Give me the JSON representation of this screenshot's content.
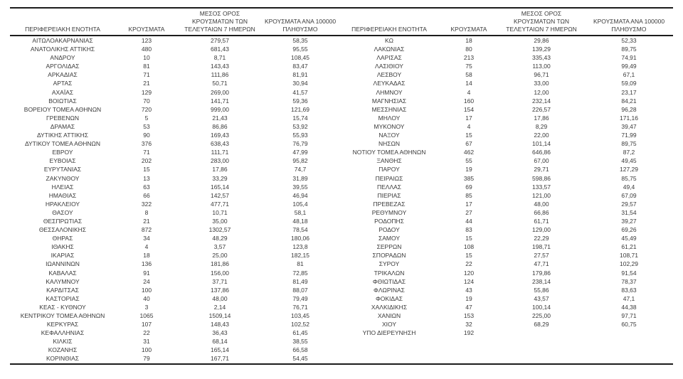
{
  "table": {
    "headers": {
      "regional_unit": "ΠΕΡΙΦΕΡΕΙΑΚΗ ΕΝΟΤΗΤΑ",
      "cases": "ΚΡΟΥΣΜΑΤΑ",
      "avg_7day": "ΜΕΣΟΣ ΟΡΟΣ\nΚΡΟΥΣΜΑΤΩΝ ΤΩΝ\nΤΕΛΕΥΤΑΙΩΝ 7 ΗΜΕΡΩΝ",
      "per_100k": "ΚΡΟΥΣΜΑΤΑ ΑΝΑ 100000\nΠΛΗΘΥΣΜΟ"
    },
    "left_rows": [
      [
        "ΑΙΤΩΛΟΑΚΑΡΝΑΝΙΑΣ",
        "123",
        "279,57",
        "58,35"
      ],
      [
        "ΑΝΑΤΟΛΙΚΗΣ ΑΤΤΙΚΗΣ",
        "480",
        "681,43",
        "95,55"
      ],
      [
        "ΑΝΔΡΟΥ",
        "10",
        "8,71",
        "108,45"
      ],
      [
        "ΑΡΓΟΛΙΔΑΣ",
        "81",
        "143,43",
        "83,47"
      ],
      [
        "ΑΡΚΑΔΙΑΣ",
        "71",
        "111,86",
        "81,91"
      ],
      [
        "ΑΡΤΑΣ",
        "21",
        "50,71",
        "30,94"
      ],
      [
        "ΑΧΑΪΑΣ",
        "129",
        "269,00",
        "41,57"
      ],
      [
        "ΒΟΙΩΤΙΑΣ",
        "70",
        "141,71",
        "59,36"
      ],
      [
        "ΒΟΡΕΙΟΥ ΤΟΜΕΑ ΑΘΗΝΩΝ",
        "720",
        "999,00",
        "121,69"
      ],
      [
        "ΓΡΕΒΕΝΩΝ",
        "5",
        "21,43",
        "15,74"
      ],
      [
        "ΔΡΑΜΑΣ",
        "53",
        "86,86",
        "53,92"
      ],
      [
        "ΔΥΤΙΚΗΣ ΑΤΤΙΚΗΣ",
        "90",
        "169,43",
        "55,93"
      ],
      [
        "ΔΥΤΙΚΟΥ ΤΟΜΕΑ ΑΘΗΝΩΝ",
        "376",
        "638,43",
        "76,79"
      ],
      [
        "ΕΒΡΟΥ",
        "71",
        "111,71",
        "47,99"
      ],
      [
        "ΕΥΒΟΙΑΣ",
        "202",
        "283,00",
        "95,82"
      ],
      [
        "ΕΥΡΥΤΑΝΙΑΣ",
        "15",
        "17,86",
        "74,7"
      ],
      [
        "ΖΑΚΥΝΘΟΥ",
        "13",
        "33,29",
        "31,89"
      ],
      [
        "ΗΛΕΙΑΣ",
        "63",
        "165,14",
        "39,55"
      ],
      [
        "ΗΜΑΘΙΑΣ",
        "66",
        "142,57",
        "46,94"
      ],
      [
        "ΗΡΑΚΛΕΙΟΥ",
        "322",
        "477,71",
        "105,4"
      ],
      [
        "ΘΑΣΟΥ",
        "8",
        "10,71",
        "58,1"
      ],
      [
        "ΘΕΣΠΡΩΤΙΑΣ",
        "21",
        "35,00",
        "48,18"
      ],
      [
        "ΘΕΣΣΑΛΟΝΙΚΗΣ",
        "872",
        "1302,57",
        "78,54"
      ],
      [
        "ΘΗΡΑΣ",
        "34",
        "48,29",
        "180,06"
      ],
      [
        "ΙΘΑΚΗΣ",
        "4",
        "3,57",
        "123,8"
      ],
      [
        "ΙΚΑΡΙΑΣ",
        "18",
        "25,00",
        "182,15"
      ],
      [
        "ΙΩΑΝΝΙΝΩΝ",
        "136",
        "181,86",
        "81"
      ],
      [
        "ΚΑΒΑΛΑΣ",
        "91",
        "156,00",
        "72,85"
      ],
      [
        "ΚΑΛΥΜΝΟΥ",
        "24",
        "37,71",
        "81,49"
      ],
      [
        "ΚΑΡΔΙΤΣΑΣ",
        "100",
        "137,86",
        "88,07"
      ],
      [
        "ΚΑΣΤΟΡΙΑΣ",
        "40",
        "48,00",
        "79,49"
      ],
      [
        "ΚΕΑΣ - ΚΥΘΝΟΥ",
        "3",
        "2,14",
        "76,71"
      ],
      [
        "ΚΕΝΤΡΙΚΟΥ ΤΟΜΕΑ ΑΘΗΝΩΝ",
        "1065",
        "1509,14",
        "103,45"
      ],
      [
        "ΚΕΡΚΥΡΑΣ",
        "107",
        "148,43",
        "102,52"
      ],
      [
        "ΚΕΦΑΛΛΗΝΙΑΣ",
        "22",
        "36,43",
        "61,45"
      ],
      [
        "ΚΙΛΚΙΣ",
        "31",
        "68,14",
        "38,55"
      ],
      [
        "ΚΟΖΑΝΗΣ",
        "100",
        "165,14",
        "66,58"
      ],
      [
        "ΚΟΡΙΝΘΙΑΣ",
        "79",
        "167,71",
        "54,45"
      ]
    ],
    "right_rows": [
      [
        "ΚΩ",
        "18",
        "29,86",
        "52,33"
      ],
      [
        "ΛΑΚΩΝΙΑΣ",
        "80",
        "139,29",
        "89,75"
      ],
      [
        "ΛΑΡΙΣΑΣ",
        "213",
        "335,43",
        "74,91"
      ],
      [
        "ΛΑΣΙΘΙΟΥ",
        "75",
        "113,00",
        "99,49"
      ],
      [
        "ΛΕΣΒΟΥ",
        "58",
        "96,71",
        "67,1"
      ],
      [
        "ΛΕΥΚΑΔΑΣ",
        "14",
        "33,00",
        "59,09"
      ],
      [
        "ΛΗΜΝΟΥ",
        "4",
        "12,00",
        "23,17"
      ],
      [
        "ΜΑΓΝΗΣΙΑΣ",
        "160",
        "232,14",
        "84,21"
      ],
      [
        "ΜΕΣΣΗΝΙΑΣ",
        "154",
        "226,57",
        "96,28"
      ],
      [
        "ΜΗΛΟΥ",
        "17",
        "17,86",
        "171,16"
      ],
      [
        "ΜΥΚΟΝΟΥ",
        "4",
        "8,29",
        "39,47"
      ],
      [
        "ΝΑΞΟΥ",
        "15",
        "22,00",
        "71,99"
      ],
      [
        "ΝΗΣΩΝ",
        "67",
        "101,14",
        "89,75"
      ],
      [
        "ΝΟΤΙΟΥ ΤΟΜΕΑ ΑΘΗΝΩΝ",
        "462",
        "646,86",
        "87,2"
      ],
      [
        "ΞΑΝΘΗΣ",
        "55",
        "67,00",
        "49,45"
      ],
      [
        "ΠΑΡΟΥ",
        "19",
        "29,71",
        "127,29"
      ],
      [
        "ΠΕΙΡΑΙΩΣ",
        "385",
        "598,86",
        "85,75"
      ],
      [
        "ΠΕΛΛΑΣ",
        "69",
        "133,57",
        "49,4"
      ],
      [
        "ΠΙΕΡΙΑΣ",
        "85",
        "121,00",
        "67,09"
      ],
      [
        "ΠΡΕΒΕΖΑΣ",
        "17",
        "48,00",
        "29,57"
      ],
      [
        "ΡΕΘΥΜΝΟΥ",
        "27",
        "66,86",
        "31,54"
      ],
      [
        "ΡΟΔΟΠΗΣ",
        "44",
        "61,71",
        "39,27"
      ],
      [
        "ΡΟΔΟΥ",
        "83",
        "129,00",
        "69,26"
      ],
      [
        "ΣΑΜΟΥ",
        "15",
        "22,29",
        "45,49"
      ],
      [
        "ΣΕΡΡΩΝ",
        "108",
        "198,71",
        "61,21"
      ],
      [
        "ΣΠΟΡΑΔΩΝ",
        "15",
        "27,57",
        "108,71"
      ],
      [
        "ΣΥΡΟΥ",
        "22",
        "47,71",
        "102,29"
      ],
      [
        "ΤΡΙΚΑΛΩΝ",
        "120",
        "179,86",
        "91,54"
      ],
      [
        "ΦΘΙΩΤΙΔΑΣ",
        "124",
        "238,14",
        "78,37"
      ],
      [
        "ΦΛΩΡΙΝΑΣ",
        "43",
        "55,86",
        "83,63"
      ],
      [
        "ΦΟΚΙΔΑΣ",
        "19",
        "43,57",
        "47,1"
      ],
      [
        "ΧΑΛΚΙΔΙΚΗΣ",
        "47",
        "100,14",
        "44,38"
      ],
      [
        "ΧΑΝΙΩΝ",
        "153",
        "225,00",
        "97,71"
      ],
      [
        "ΧΙΟΥ",
        "32",
        "68,29",
        "60,75"
      ],
      [
        "ΥΠΟ ΔΙΕΡΕΥΝΗΣΗ",
        "192",
        "",
        ""
      ]
    ],
    "colors": {
      "text": "#3a3a3a",
      "border": "#1c1c1c",
      "background": "#ffffff"
    }
  }
}
